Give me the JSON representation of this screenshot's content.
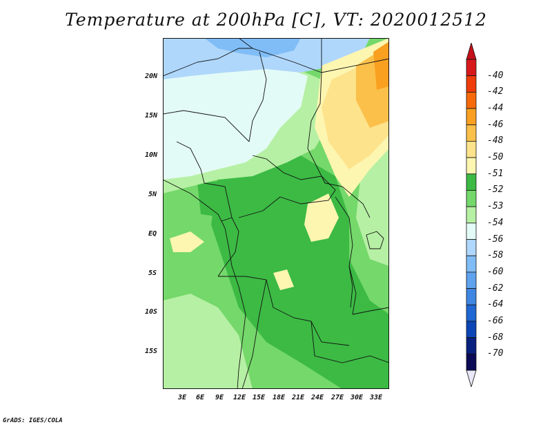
{
  "title": "Temperature at 200hPa [C], VT: 2020012512",
  "credit": "GrADS: IGES/COLA",
  "lat_labels": [
    "20N",
    "15N",
    "10N",
    "5N",
    "EQ",
    "5S",
    "10S",
    "15S"
  ],
  "lon_labels": [
    "3E",
    "6E",
    "9E",
    "12E",
    "15E",
    "18E",
    "21E",
    "24E",
    "27E",
    "30E",
    "33E"
  ],
  "colorbar": {
    "labels": [
      "-40",
      "-42",
      "-44",
      "-46",
      "-48",
      "-50",
      "-51",
      "-52",
      "-53",
      "-54",
      "-56",
      "-58",
      "-60",
      "-62",
      "-64",
      "-66",
      "-68",
      "-70"
    ],
    "colors": [
      "#d7191c",
      "#f03c0a",
      "#f76a0a",
      "#f9a021",
      "#fbc04a",
      "#fde38c",
      "#fcf6b1",
      "#3cba44",
      "#74d86a",
      "#b6f0a4",
      "#e3fbf6",
      "#afd7fb",
      "#80bdf6",
      "#5fa2ee",
      "#3f86e2",
      "#1f67d2",
      "#0c45b6",
      "#08207e",
      "#0a0a55"
    ],
    "top_arrow": "#c4101a",
    "bottom_arrow": "#e8e8f6"
  }
}
